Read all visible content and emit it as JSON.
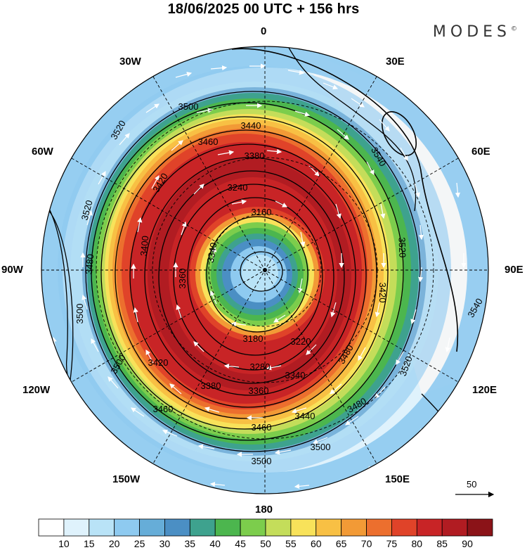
{
  "title": "18/06/2025  00 UTC  + 156 hrs",
  "brand": "MODES",
  "brand_mark": "©",
  "longitude_labels": {
    "n0": "0",
    "n30w": "30W",
    "n30e": "30E",
    "n60w": "60W",
    "n60e": "60E",
    "w90": "90W",
    "e90": "90E",
    "s120w": "120W",
    "s120e": "120E",
    "s150w": "150W",
    "s150e": "150E",
    "s180": "180"
  },
  "contour_labels": [
    "3500",
    "3520",
    "3440",
    "3540",
    "3460",
    "3380",
    "3420",
    "3240",
    "3160",
    "3520",
    "3480",
    "3400",
    "3520",
    "3500",
    "3340",
    "3360",
    "3420",
    "3500",
    "3180",
    "3220",
    "3280",
    "3340",
    "3380",
    "3360",
    "3440",
    "3480",
    "3480",
    "3520",
    "3540",
    "3460",
    "3500",
    "3500",
    "3420",
    "3460"
  ],
  "vector_reference": {
    "label": "50"
  },
  "colorbar": {
    "ticks": [
      "10",
      "15",
      "20",
      "25",
      "30",
      "35",
      "40",
      "45",
      "50",
      "55",
      "60",
      "65",
      "70",
      "75",
      "80",
      "85",
      "90"
    ],
    "colors": [
      "#ffffff",
      "#dff2fc",
      "#b9e3f7",
      "#8ecaf0",
      "#66add8",
      "#4b8fc4",
      "#3ea28e",
      "#4cb64e",
      "#7ccd4c",
      "#c4dd5a",
      "#f8e25a",
      "#f8c044",
      "#f29a36",
      "#ec6f2e",
      "#e04329",
      "#c82426",
      "#b11c22",
      "#8b1318"
    ]
  }
}
